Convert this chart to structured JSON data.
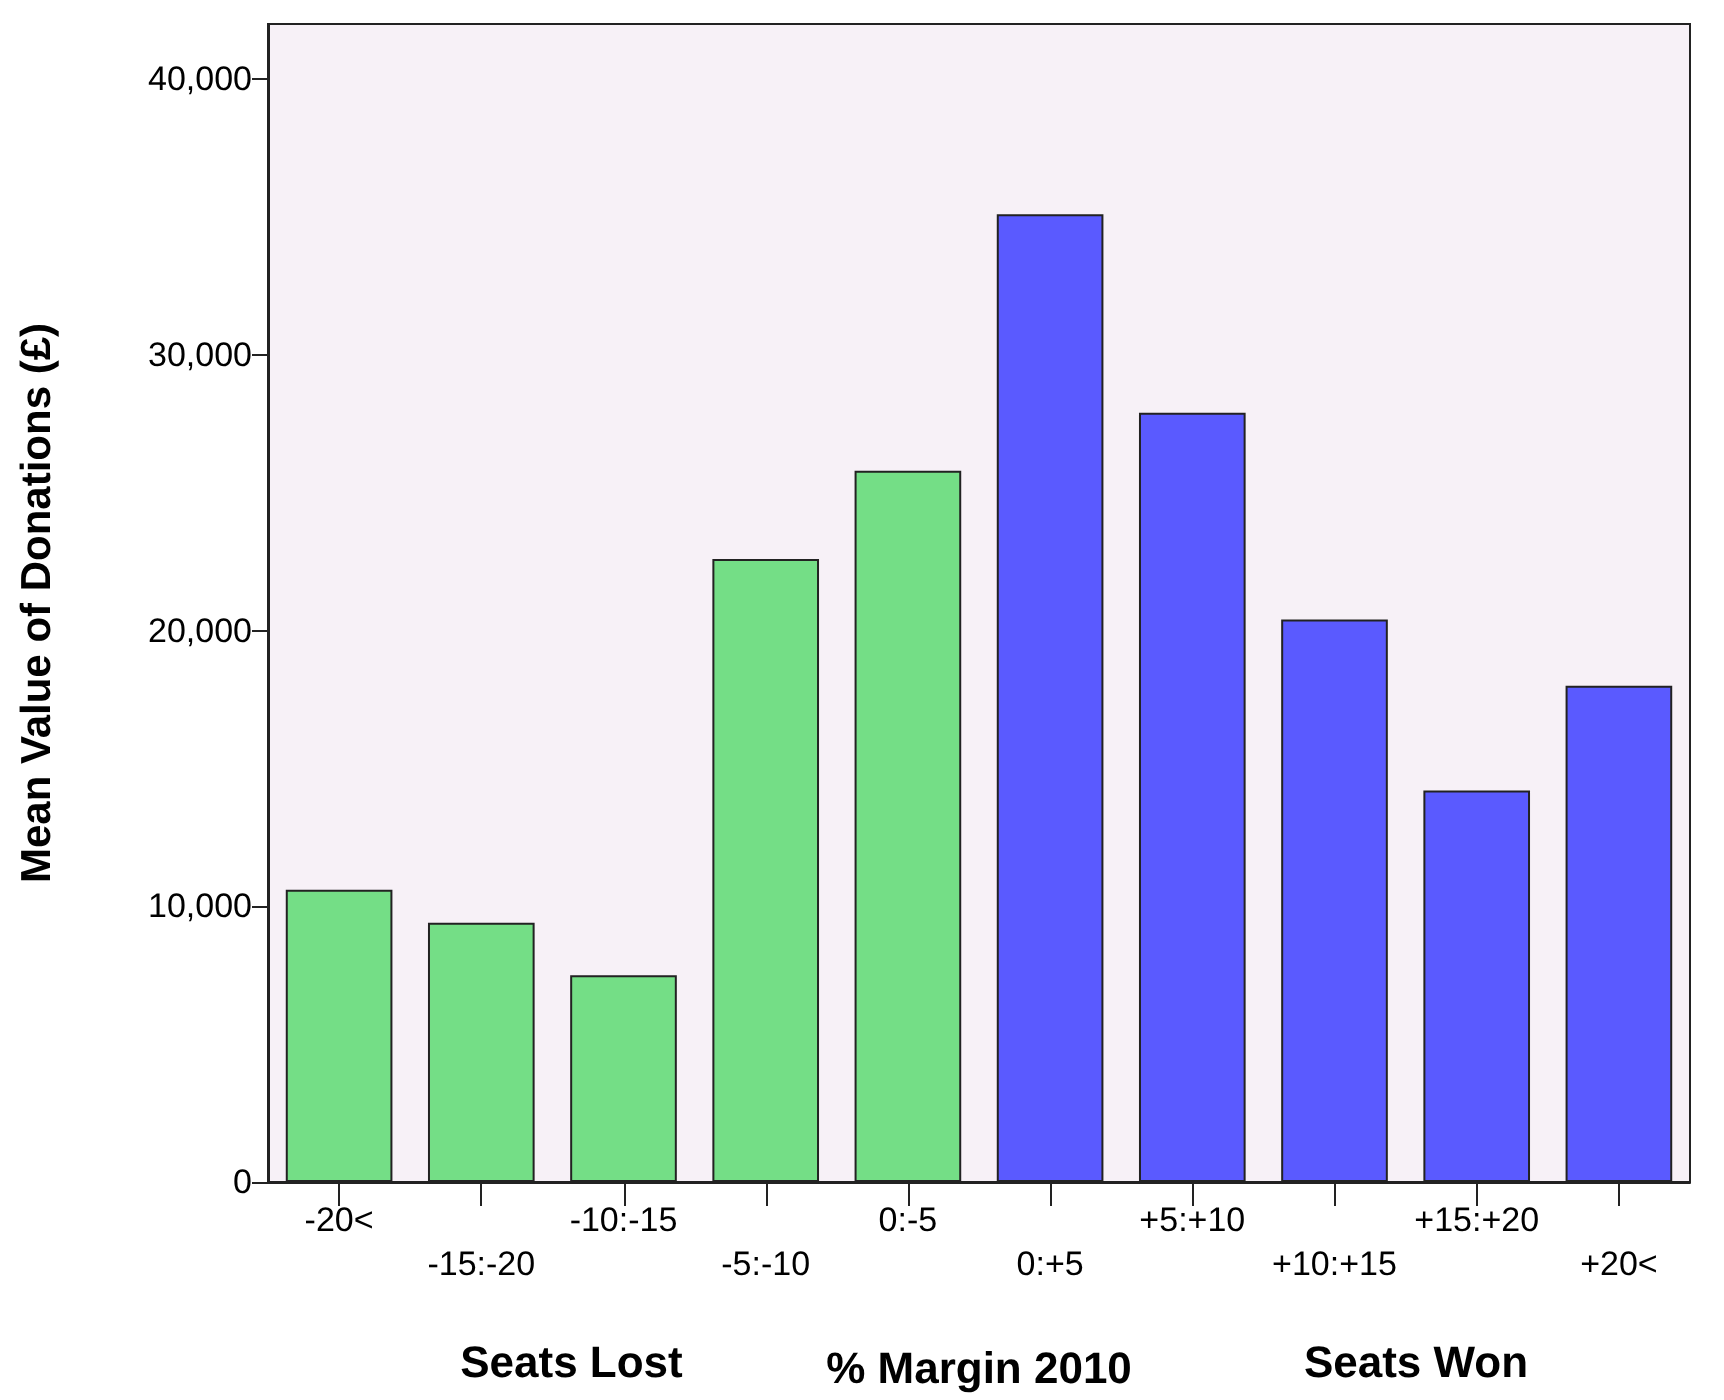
{
  "chart_data": {
    "type": "bar",
    "ylabel": "Mean Value of Donations (£)",
    "xlabel": "% Margin 2010",
    "annotations": [
      "Seats Lost",
      "Seats Won"
    ],
    "categories": [
      "-20<",
      "-15:-20",
      "-10:-15",
      "-5:-10",
      "0:-5",
      "0:+5",
      "+5:+10",
      "+10:+15",
      "+15:+20",
      "+20<"
    ],
    "values": [
      10600,
      9400,
      7500,
      22600,
      25800,
      35100,
      27900,
      20400,
      14200,
      18000
    ],
    "colors": [
      "#74de86",
      "#74de86",
      "#74de86",
      "#74de86",
      "#74de86",
      "#5a5aff",
      "#5a5aff",
      "#5a5aff",
      "#5a5aff",
      "#5a5aff"
    ],
    "ylim": [
      0,
      42000
    ],
    "yticks": [
      {
        "value": 0,
        "label": "0"
      },
      {
        "value": 10000,
        "label": "10,000"
      },
      {
        "value": 20000,
        "label": "20,000"
      },
      {
        "value": 30000,
        "label": "30,000"
      },
      {
        "value": 40000,
        "label": "40,000"
      }
    ],
    "data_labels": false
  }
}
